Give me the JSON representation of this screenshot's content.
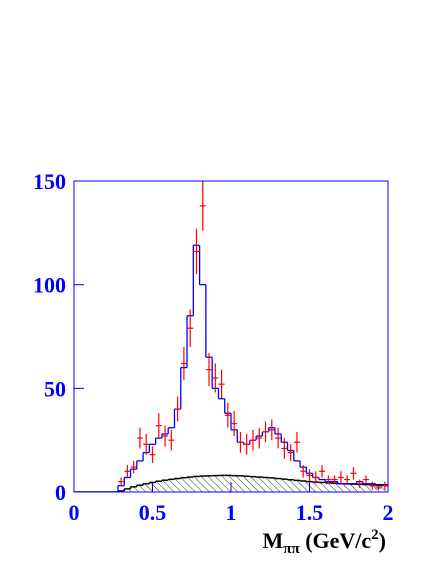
{
  "chart_data": {
    "type": "histogram",
    "bins": [
      0,
      0.04,
      0.08,
      0.12,
      0.16,
      0.2,
      0.24,
      0.28,
      0.32,
      0.36,
      0.4,
      0.44,
      0.48,
      0.52,
      0.56,
      0.6,
      0.64,
      0.68,
      0.72,
      0.76,
      0.8,
      0.84,
      0.88,
      0.92,
      0.96,
      1,
      1.04,
      1.08,
      1.12,
      1.16,
      1.2,
      1.24,
      1.28,
      1.32,
      1.36,
      1.4,
      1.44,
      1.48,
      1.52,
      1.56,
      1.6,
      1.64,
      1.68,
      1.72,
      1.76,
      1.8,
      1.84,
      1.88,
      1.92,
      1.96,
      2
    ],
    "series": [
      {
        "color": "#000000",
        "hatch": true,
        "values": [
          0,
          0,
          0,
          0,
          0,
          0,
          0,
          0.5,
          1.5,
          2.5,
          3.3,
          4,
          4.6,
          5.2,
          5.7,
          6.1,
          6.5,
          6.9,
          7.2,
          7.5,
          7.7,
          7.8,
          7.9,
          8,
          8,
          7.9,
          7.8,
          7.6,
          7.4,
          7.2,
          7,
          6.8,
          6.5,
          6.2,
          5.9,
          5.6,
          5.3,
          5,
          4.8,
          4.6,
          4.4,
          4.2,
          4,
          3.9,
          3.8,
          3.7,
          3.6,
          3.6,
          3.5,
          3.5
        ]
      },
      {
        "color": "#0000ff",
        "values": [
          0,
          0,
          0,
          0,
          0,
          0,
          0,
          3,
          7,
          11,
          15,
          19,
          23,
          26,
          28,
          31,
          40,
          60,
          85,
          119,
          100,
          65,
          50,
          45,
          38,
          30,
          24,
          23,
          25,
          27,
          29,
          31,
          28,
          24,
          20,
          15,
          12,
          9,
          7,
          6,
          5,
          5,
          4,
          4,
          4,
          5,
          4,
          4,
          3,
          3
        ]
      },
      {
        "color": "#ff0000",
        "x": [
          0.3,
          0.34,
          0.38,
          0.42,
          0.46,
          0.5,
          0.54,
          0.58,
          0.62,
          0.66,
          0.7,
          0.74,
          0.78,
          0.82,
          0.86,
          0.9,
          0.94,
          0.98,
          1.02,
          1.06,
          1.1,
          1.14,
          1.18,
          1.22,
          1.26,
          1.3,
          1.34,
          1.38,
          1.42,
          1.46,
          1.5,
          1.54,
          1.58,
          1.62,
          1.66,
          1.7,
          1.74,
          1.78,
          1.82,
          1.86,
          1.9,
          1.94,
          1.98
        ],
        "values": [
          5,
          10,
          12,
          26,
          23,
          18,
          32,
          27,
          25,
          40,
          62,
          79,
          116,
          138,
          59,
          55,
          52,
          37,
          33,
          24,
          23,
          25,
          26,
          29,
          30,
          26,
          21,
          19,
          24,
          10,
          8,
          7,
          10,
          6,
          6,
          7,
          6,
          9,
          4,
          6,
          3,
          2,
          3
        ],
        "errors": [
          2,
          3,
          3,
          5,
          5,
          4,
          6,
          5,
          5,
          6,
          8,
          9,
          11,
          12,
          8,
          7,
          7,
          6,
          6,
          5,
          5,
          5,
          5,
          5,
          5,
          5,
          5,
          4,
          5,
          3,
          3,
          3,
          3,
          2,
          2,
          3,
          2,
          3,
          2,
          2,
          2,
          1,
          2
        ]
      }
    ],
    "xlim": [
      0,
      2
    ],
    "xticks": [
      0,
      0.5,
      1,
      1.5,
      2
    ],
    "ylim": [
      0,
      150
    ],
    "yticks": [
      0,
      50,
      100,
      150
    ],
    "axis_color": "#0000ff",
    "xlabel": {
      "main": "M",
      "sub": "ππ",
      "unit": " (GeV/c",
      "sup": "2",
      "close": ")"
    }
  }
}
